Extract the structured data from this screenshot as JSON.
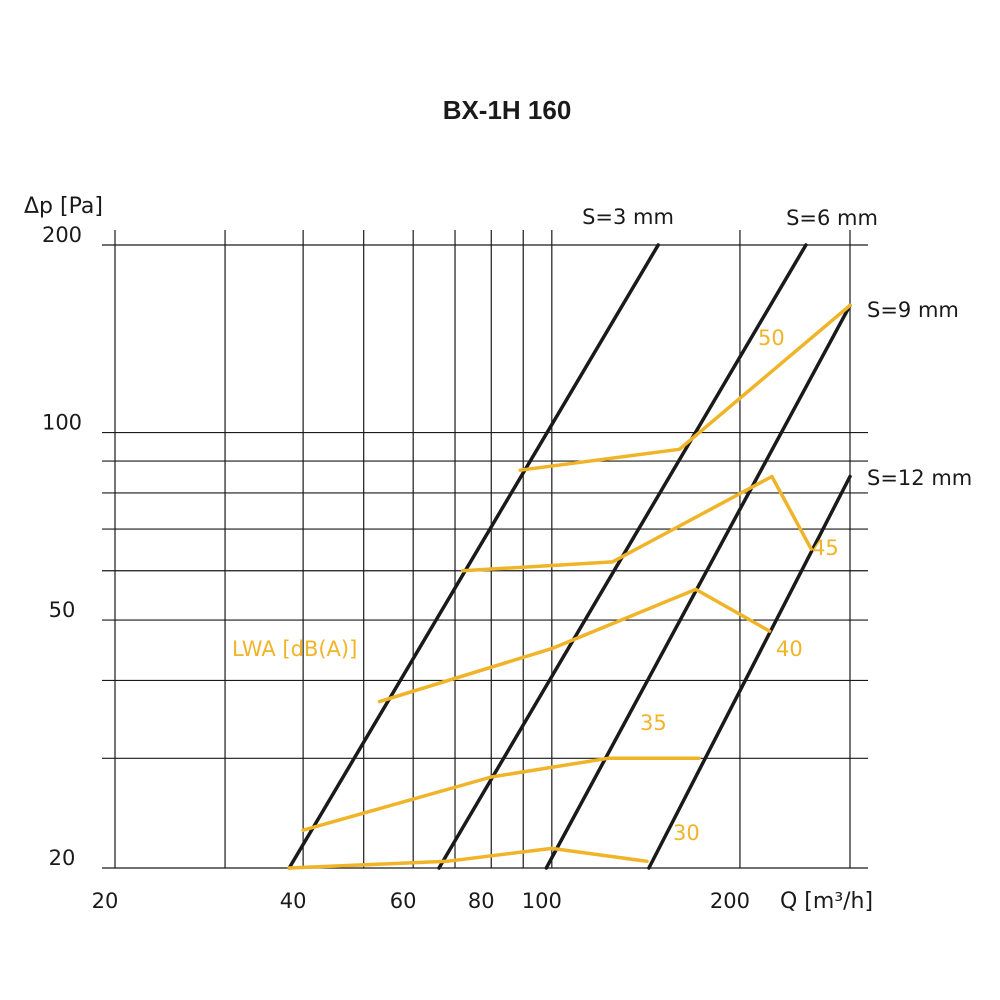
{
  "chart_data": {
    "type": "line",
    "title": "BX-1H 160",
    "xlabel": "Q [m³/h]",
    "ylabel": "Δp [Pa]",
    "x_scale": "log",
    "y_scale": "log",
    "xlim": [
      20,
      300
    ],
    "ylim": [
      20,
      200
    ],
    "x_ticks": [
      20,
      40,
      60,
      80,
      100,
      200
    ],
    "y_ticks": [
      20,
      50,
      100,
      200
    ],
    "x_grid": [
      20,
      30,
      40,
      50,
      60,
      70,
      80,
      90,
      100,
      200,
      300
    ],
    "y_grid": [
      20,
      30,
      40,
      50,
      60,
      70,
      80,
      90,
      100,
      200
    ],
    "grid": true,
    "line_color": "#1a1a1a",
    "noise_color": "#f0b428",
    "noise_legend": "LWA [dB(A)]",
    "series": [
      {
        "name": "S=3 mm",
        "x": [
          38,
          148
        ],
        "y": [
          20,
          200
        ]
      },
      {
        "name": "S=6 mm",
        "x": [
          66,
          255
        ],
        "y": [
          20,
          200
        ]
      },
      {
        "name": "S=9 mm",
        "x": [
          98,
          300
        ],
        "y": [
          20,
          160
        ]
      },
      {
        "name": "S=12 mm",
        "x": [
          143,
          300
        ],
        "y": [
          20,
          85
        ]
      }
    ],
    "noise_levels": [
      {
        "label": "50",
        "x": [
          89,
          160,
          300
        ],
        "y": [
          87,
          94,
          160
        ]
      },
      {
        "label": "45",
        "x": [
          72,
          125,
          225,
          260
        ],
        "y": [
          60,
          62,
          85,
          65
        ]
      },
      {
        "label": "40",
        "x": [
          53,
          100,
          170,
          223
        ],
        "y": [
          37,
          45,
          56,
          48
        ]
      },
      {
        "label": "35",
        "x": [
          40,
          80,
          123,
          172
        ],
        "y": [
          23,
          28,
          30,
          30
        ]
      },
      {
        "label": "30",
        "x": [
          38,
          68,
          100,
          142
        ],
        "y": [
          20,
          20.5,
          21.5,
          20.5
        ]
      }
    ]
  }
}
